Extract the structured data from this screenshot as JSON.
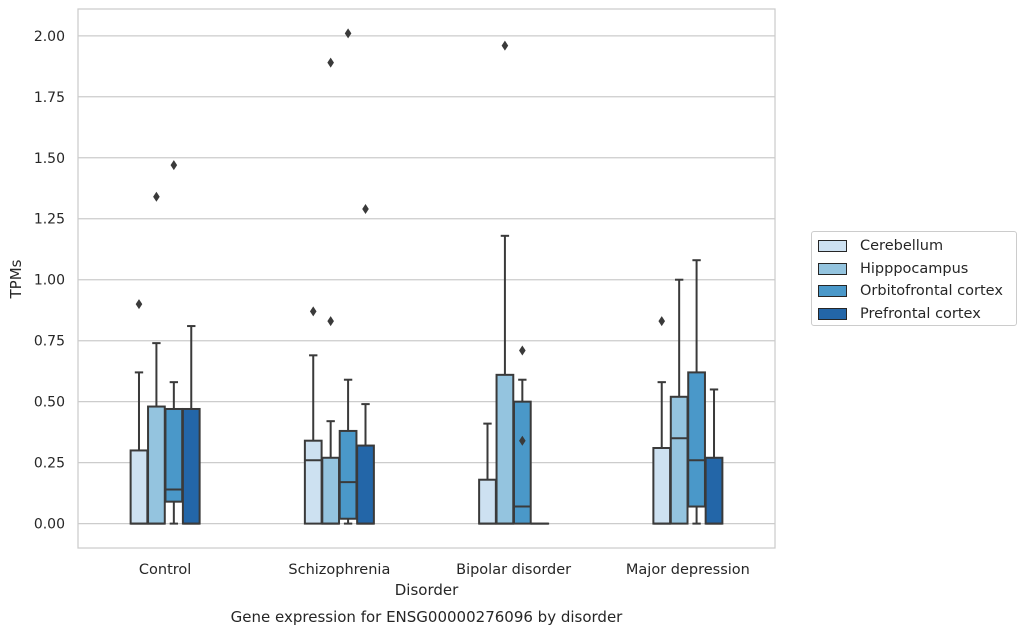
{
  "chart_data": {
    "type": "box",
    "title": "Gene expression for ENSG00000276096 by disorder",
    "xlabel": "Disorder",
    "ylabel": "TPMs",
    "ylim": [
      -0.1,
      2.11
    ],
    "yticks": [
      "0.00",
      "0.25",
      "0.50",
      "0.75",
      "1.00",
      "1.25",
      "1.50",
      "1.75",
      "2.00"
    ],
    "ytick_values": [
      0,
      0.25,
      0.5,
      0.75,
      1.0,
      1.25,
      1.5,
      1.75,
      2.0
    ],
    "grid": true,
    "legend_position": "right",
    "categories": [
      "Control",
      "Schizophrenia",
      "Bipolar disorder",
      "Major depression"
    ],
    "series": [
      {
        "name": "Cerebellum",
        "color": "#cde1f1",
        "boxes": [
          {
            "min": 0,
            "q1": 0,
            "median": 0,
            "q3": 0.3,
            "max": 0.62,
            "outliers": [
              0.9
            ]
          },
          {
            "min": 0,
            "q1": 0,
            "median": 0.26,
            "q3": 0.34,
            "max": 0.69,
            "outliers": [
              0.87
            ]
          },
          {
            "min": 0,
            "q1": 0,
            "median": 0,
            "q3": 0.18,
            "max": 0.41,
            "outliers": []
          },
          {
            "min": 0,
            "q1": 0,
            "median": 0,
            "q3": 0.31,
            "max": 0.58,
            "outliers": [
              0.83
            ]
          }
        ]
      },
      {
        "name": "Hipppocampus",
        "color": "#94c4df",
        "boxes": [
          {
            "min": 0,
            "q1": 0,
            "median": 0,
            "q3": 0.48,
            "max": 0.74,
            "outliers": [
              1.34
            ]
          },
          {
            "min": 0,
            "q1": 0,
            "median": 0,
            "q3": 0.27,
            "max": 0.42,
            "outliers": [
              0.83,
              1.89
            ]
          },
          {
            "min": 0,
            "q1": 0,
            "median": 0,
            "q3": 0.61,
            "max": 1.18,
            "outliers": [
              1.96
            ]
          },
          {
            "min": 0,
            "q1": 0,
            "median": 0.35,
            "q3": 0.52,
            "max": 1.0,
            "outliers": []
          }
        ]
      },
      {
        "name": "Orbitofrontal cortex",
        "color": "#4a98c9",
        "boxes": [
          {
            "min": 0,
            "q1": 0.09,
            "median": 0.14,
            "q3": 0.47,
            "max": 0.58,
            "outliers": [
              1.47
            ]
          },
          {
            "min": 0,
            "q1": 0.02,
            "median": 0.17,
            "q3": 0.38,
            "max": 0.59,
            "outliers": [
              2.01
            ]
          },
          {
            "min": 0,
            "q1": 0,
            "median": 0.07,
            "q3": 0.5,
            "max": 0.59,
            "outliers": [
              0.34,
              0.71
            ]
          },
          {
            "min": 0,
            "q1": 0.07,
            "median": 0.26,
            "q3": 0.62,
            "max": 1.08,
            "outliers": []
          }
        ]
      },
      {
        "name": "Prefrontal cortex",
        "color": "#2366a8",
        "boxes": [
          {
            "min": 0,
            "q1": 0,
            "median": 0,
            "q3": 0.47,
            "max": 0.81,
            "outliers": []
          },
          {
            "min": 0,
            "q1": 0,
            "median": 0,
            "q3": 0.32,
            "max": 0.49,
            "outliers": [
              1.29
            ]
          },
          {
            "min": 0,
            "q1": 0,
            "median": 0,
            "q3": 0,
            "max": 0,
            "outliers": []
          },
          {
            "min": 0,
            "q1": 0,
            "median": 0,
            "q3": 0.27,
            "max": 0.55,
            "outliers": []
          }
        ]
      }
    ]
  }
}
